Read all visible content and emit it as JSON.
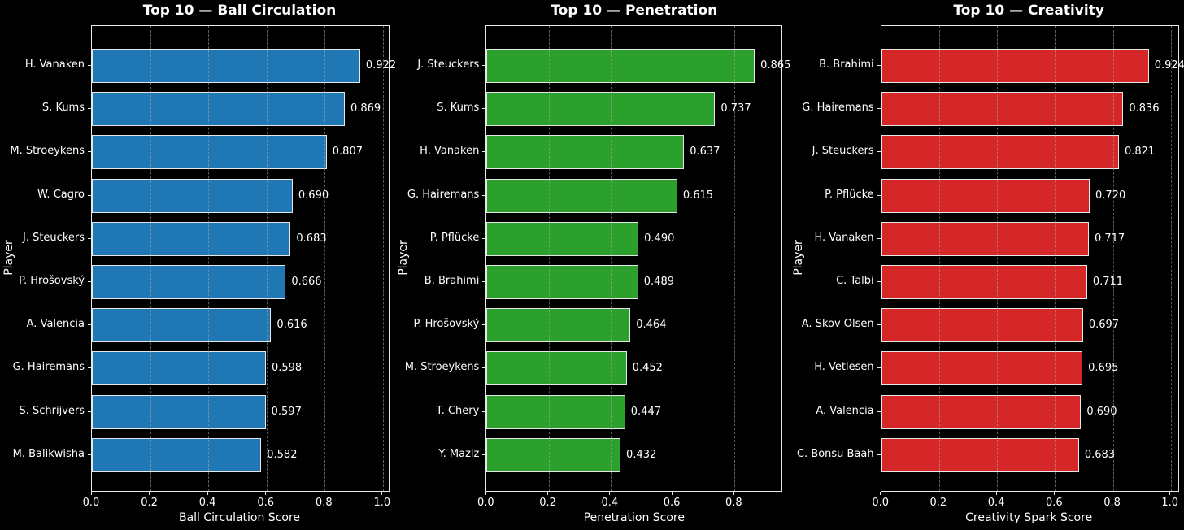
{
  "figure": {
    "background": "#000000",
    "text_color": "#ffffff",
    "spine_color": "#e8e8e8",
    "grid_color": "#a8a8a8",
    "grid_style": "dashed"
  },
  "chart_data": [
    {
      "type": "bar",
      "orientation": "horizontal",
      "title": "Top 10 — Ball Circulation",
      "xlabel": "Ball Circulation Score",
      "ylabel": "Player",
      "bar_color": "#1f77b4",
      "bar_edge_color": "#e6e6e6",
      "grid": true,
      "legend": null,
      "xlim": [
        0.0,
        1.02
      ],
      "xticks": [
        0.0,
        0.2,
        0.4,
        0.6,
        0.8,
        1.0
      ],
      "xtick_labels": [
        "0.0",
        "0.2",
        "0.4",
        "0.6",
        "0.8",
        "1.0"
      ],
      "categories": [
        "H. Vanaken",
        "S. Kums",
        "M. Stroeykens",
        "W. Cagro",
        "J. Steuckers",
        "P. Hrošovský",
        "A. Valencia",
        "G. Hairemans",
        "S. Schrijvers",
        "M. Balikwisha"
      ],
      "values": [
        0.922,
        0.869,
        0.807,
        0.69,
        0.683,
        0.666,
        0.616,
        0.598,
        0.597,
        0.582
      ],
      "value_labels": [
        "0.922",
        "0.869",
        "0.807",
        "0.690",
        "0.683",
        "0.666",
        "0.616",
        "0.598",
        "0.597",
        "0.582"
      ]
    },
    {
      "type": "bar",
      "orientation": "horizontal",
      "title": "Top 10 — Penetration",
      "xlabel": "Penetration Score",
      "ylabel": "Player",
      "bar_color": "#2ca02c",
      "bar_edge_color": "#e6e6e6",
      "grid": true,
      "legend": null,
      "xlim": [
        0.0,
        0.952
      ],
      "xticks": [
        0.0,
        0.2,
        0.4,
        0.6,
        0.8
      ],
      "xtick_labels": [
        "0.0",
        "0.2",
        "0.4",
        "0.6",
        "0.8"
      ],
      "categories": [
        "J. Steuckers",
        "S. Kums",
        "H. Vanaken",
        "G. Hairemans",
        "P. Pflücke",
        "B. Brahimi",
        "P. Hrošovský",
        "M. Stroeykens",
        "T. Chery",
        "Y. Maziz"
      ],
      "values": [
        0.865,
        0.737,
        0.637,
        0.615,
        0.49,
        0.489,
        0.464,
        0.452,
        0.447,
        0.432
      ],
      "value_labels": [
        "0.865",
        "0.737",
        "0.637",
        "0.615",
        "0.490",
        "0.489",
        "0.464",
        "0.452",
        "0.447",
        "0.432"
      ]
    },
    {
      "type": "bar",
      "orientation": "horizontal",
      "title": "Top 10 — Creativity",
      "xlabel": "Creativity Spark Score",
      "ylabel": "Player",
      "bar_color": "#d62728",
      "bar_edge_color": "#e6e6e6",
      "grid": true,
      "legend": null,
      "xlim": [
        0.0,
        1.025
      ],
      "xticks": [
        0.0,
        0.2,
        0.4,
        0.6,
        0.8,
        1.0
      ],
      "xtick_labels": [
        "0.0",
        "0.2",
        "0.4",
        "0.6",
        "0.8",
        "1.0"
      ],
      "categories": [
        "B. Brahimi",
        "G. Hairemans",
        "J. Steuckers",
        "P. Pflücke",
        "H. Vanaken",
        "C. Talbi",
        "A. Skov Olsen",
        "H. Vetlesen",
        "A. Valencia",
        "C. Bonsu Baah"
      ],
      "values": [
        0.924,
        0.836,
        0.821,
        0.72,
        0.717,
        0.711,
        0.697,
        0.695,
        0.69,
        0.683
      ],
      "value_labels": [
        "0.924",
        "0.836",
        "0.821",
        "0.720",
        "0.717",
        "0.711",
        "0.697",
        "0.695",
        "0.690",
        "0.683"
      ]
    }
  ]
}
